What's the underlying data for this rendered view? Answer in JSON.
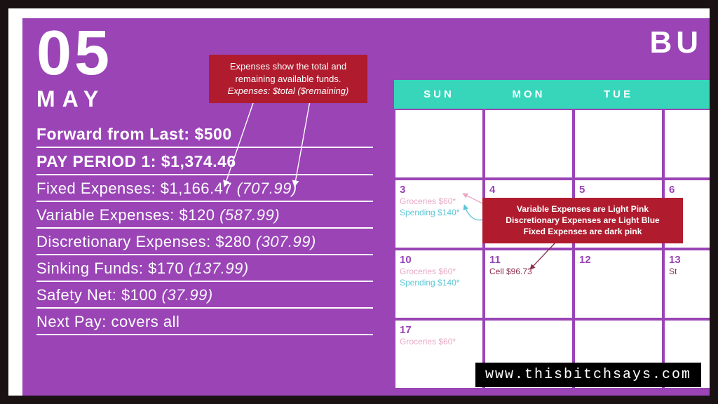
{
  "colors": {
    "outer_bg": "#1a1212",
    "panel_bg": "#9a44b6",
    "teal": "#37d6bb",
    "callout_bg": "#b01c2e",
    "variable_expense": "#e8a8c4",
    "discretionary_expense": "#5cc6d6",
    "fixed_expense": "#8a2d4b",
    "cell_border": "#9a44b6",
    "white": "#ffffff"
  },
  "header": {
    "title_fragment": "BU",
    "month_num": "05",
    "month_name": "MAY"
  },
  "summary": {
    "forward": "Forward from Last: $500",
    "pay_period": "PAY PERIOD 1: $1,374.46",
    "lines": [
      {
        "label": "Fixed Expenses: $1,166.47",
        "remaining": "(707.99)"
      },
      {
        "label": "Variable Expenses: $120",
        "remaining": "(587.99)"
      },
      {
        "label": "Discretionary Expenses: $280",
        "remaining": "(307.99)"
      },
      {
        "label": "Sinking Funds: $170",
        "remaining": "(137.99)"
      },
      {
        "label": "Safety Net: $100",
        "remaining": "(37.99)"
      },
      {
        "label": "Next Pay: covers all",
        "remaining": ""
      }
    ]
  },
  "calendar": {
    "days": [
      "SUN",
      "MON",
      "TUE",
      ""
    ],
    "rows": [
      [
        {
          "num": "",
          "items": []
        },
        {
          "num": "",
          "items": []
        },
        {
          "num": "",
          "items": []
        },
        {
          "num": "",
          "items": []
        }
      ],
      [
        {
          "num": "3",
          "items": [
            {
              "text": "Groceries $60*",
              "cls": "i-var"
            },
            {
              "text": "Spending $140*",
              "cls": "i-disc"
            }
          ]
        },
        {
          "num": "4",
          "items": []
        },
        {
          "num": "5",
          "items": []
        },
        {
          "num": "6",
          "items": []
        }
      ],
      [
        {
          "num": "10",
          "items": [
            {
              "text": "Groceries $60*",
              "cls": "i-var"
            },
            {
              "text": "Spending $140*",
              "cls": "i-disc"
            }
          ]
        },
        {
          "num": "11",
          "items": [
            {
              "text": "Cell $96.73",
              "cls": "i-fixed"
            }
          ]
        },
        {
          "num": "12",
          "items": []
        },
        {
          "num": "13",
          "items": [
            {
              "text": "St",
              "cls": "i-fixed"
            }
          ]
        }
      ],
      [
        {
          "num": "17",
          "items": [
            {
              "text": "Groceries $60*",
              "cls": "i-var"
            }
          ]
        },
        {
          "num": "",
          "items": []
        },
        {
          "num": "",
          "items": []
        },
        {
          "num": "",
          "items": []
        }
      ]
    ]
  },
  "callouts": {
    "top": {
      "line1": "Expenses show the total and",
      "line2": "remaining available funds.",
      "line3": "Expenses: $total ($remaining)"
    },
    "right": {
      "line1": "Variable Expenses are Light Pink",
      "line2": "Discretionary Expenses are Light Blue",
      "line3": "Fixed Expenses are dark pink"
    }
  },
  "watermark": "www.thisbitchsays.com"
}
